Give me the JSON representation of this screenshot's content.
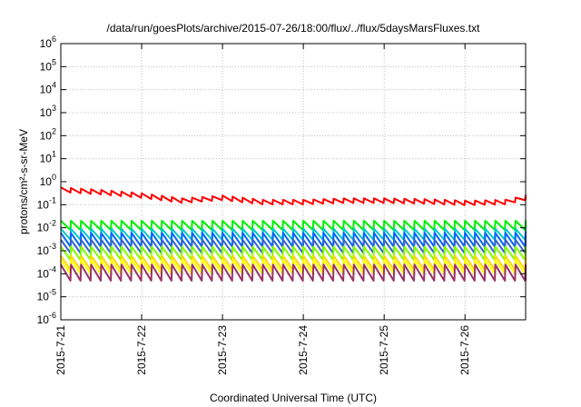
{
  "chart_data": {
    "type": "line",
    "title": "/data/run/goesPlots/archive/2015-07-26/18:00/flux/../flux/5daysMarsFluxes.txt",
    "xlabel": "Coordinated Universal Time (UTC)",
    "ylabel": "protons/cm²-s-sr-MeV",
    "y_scale": "log",
    "ylim": [
      1e-06,
      1000000.0
    ],
    "x_range_days": [
      "2015-07-21",
      "2015-07-26 18:00"
    ],
    "x_ticks": [
      "2015-7-21",
      "2015-7-22",
      "2015-7-23",
      "2015-7-24",
      "2015-7-25",
      "2015-7-26"
    ],
    "y_tick_exponents": [
      -6,
      -5,
      -4,
      -3,
      -2,
      -1,
      0,
      1,
      2,
      3,
      4,
      5,
      6
    ],
    "grid": true,
    "legend": "none",
    "sawtooth_period_hours": 3,
    "series": [
      {
        "color": "#ff0000",
        "x": [
          "2015-7-21 00:00",
          "2015-7-21 12:00",
          "2015-7-22 00:00",
          "2015-7-22 12:00",
          "2015-7-23 00:00",
          "2015-7-23 12:00",
          "2015-7-24 00:00",
          "2015-7-24 12:00",
          "2015-7-25 00:00",
          "2015-7-25 12:00",
          "2015-7-26 00:00",
          "2015-7-26 12:00",
          "2015-7-26 18:00"
        ],
        "values": [
          0.45,
          0.35,
          0.25,
          0.15,
          0.2,
          0.13,
          0.13,
          0.15,
          0.15,
          0.14,
          0.12,
          0.13,
          0.2
        ]
      },
      {
        "color": "#00ee00",
        "values_min": 0.008,
        "values_max": 0.02
      },
      {
        "color": "#00c8c8",
        "values_min": 0.003,
        "values_max": 0.009
      },
      {
        "color": "#0066ff",
        "values_min": 0.0015,
        "values_max": 0.006
      },
      {
        "color": "#3366cc",
        "values_min": 0.0008,
        "values_max": 0.003
      },
      {
        "color": "#7fff00",
        "values_min": 0.0004,
        "values_max": 0.0015
      },
      {
        "color": "#ffd700",
        "values_min": 0.00015,
        "values_max": 0.0006
      },
      {
        "color": "#ffff00",
        "values_min": 0.0001,
        "values_max": 0.0004
      },
      {
        "color": "#993366",
        "values_min": 5e-05,
        "values_max": 0.00025
      }
    ]
  }
}
